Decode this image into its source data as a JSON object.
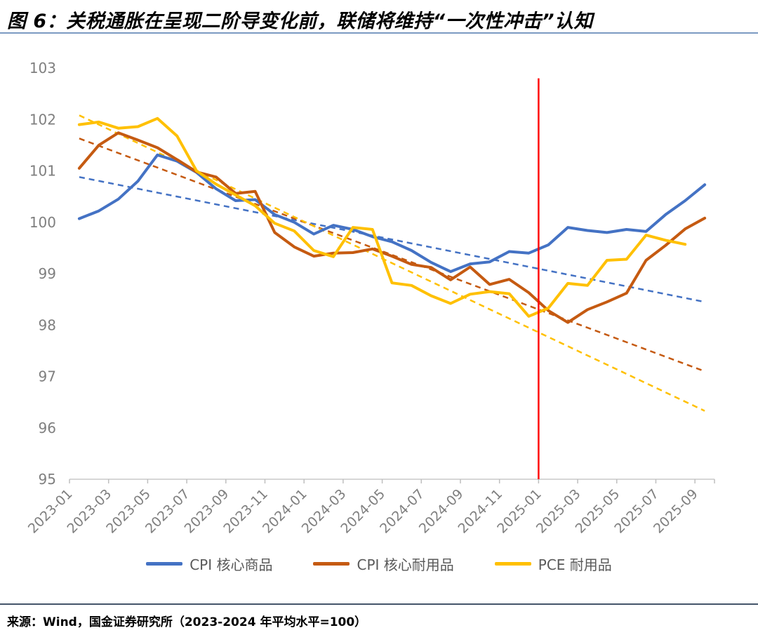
{
  "title": "图 6：关税通胀在呈现二阶导变化前，联储将维持“一次性冲击”认知",
  "source_note": "来源：Wind，国金证券研究所（2023-2024 年平均水平=100）",
  "chart_data": {
    "type": "line",
    "title": "",
    "xlabel": "",
    "ylabel": "",
    "ylim": [
      95,
      103
    ],
    "y_ticks": [
      95,
      96,
      97,
      98,
      99,
      100,
      101,
      102,
      103
    ],
    "grid": false,
    "legend_position": "bottom",
    "categories": [
      "2023-01",
      "2023-02",
      "2023-03",
      "2023-04",
      "2023-05",
      "2023-06",
      "2023-07",
      "2023-08",
      "2023-09",
      "2023-10",
      "2023-11",
      "2023-12",
      "2024-01",
      "2024-02",
      "2024-03",
      "2024-04",
      "2024-05",
      "2024-06",
      "2024-07",
      "2024-08",
      "2024-09",
      "2024-10",
      "2024-11",
      "2024-12",
      "2025-01",
      "2025-02",
      "2025-03",
      "2025-04",
      "2025-05",
      "2025-06",
      "2025-07",
      "2025-08",
      "2025-09"
    ],
    "x_tick_labels": [
      "2023-01",
      "2023-03",
      "2023-05",
      "2023-07",
      "2023-09",
      "2023-11",
      "2024-01",
      "2024-03",
      "2024-05",
      "2024-07",
      "2024-09",
      "2024-11",
      "2025-01",
      "2025-03",
      "2025-05",
      "2025-07",
      "2025-09"
    ],
    "series": [
      {
        "name": "CPI 核心商品",
        "color": "#4472C4",
        "values": [
          100.07,
          100.22,
          100.45,
          100.8,
          101.31,
          101.19,
          100.97,
          100.65,
          100.42,
          100.44,
          100.15,
          100.0,
          99.77,
          99.94,
          99.86,
          99.72,
          99.62,
          99.45,
          99.22,
          99.04,
          99.19,
          99.23,
          99.43,
          99.4,
          99.56,
          99.9,
          99.84,
          99.8,
          99.86,
          99.82,
          100.15,
          100.42,
          100.73
        ]
      },
      {
        "name": "CPI 核心耐用品",
        "color": "#C55A11",
        "values": [
          101.05,
          101.5,
          101.74,
          101.6,
          101.45,
          101.22,
          100.98,
          100.88,
          100.56,
          100.6,
          99.8,
          99.52,
          99.34,
          99.4,
          99.41,
          99.48,
          99.34,
          99.18,
          99.12,
          98.88,
          99.13,
          98.79,
          98.89,
          98.63,
          98.28,
          98.05,
          98.3,
          98.45,
          98.62,
          99.26,
          99.55,
          99.87,
          100.08
        ]
      },
      {
        "name": "PCE 耐用品",
        "color": "#FFC000",
        "values": [
          101.9,
          101.95,
          101.83,
          101.86,
          102.02,
          101.68,
          101.0,
          100.74,
          100.53,
          100.32,
          99.98,
          99.83,
          99.45,
          99.33,
          99.9,
          99.86,
          98.82,
          98.77,
          98.57,
          98.42,
          98.6,
          98.65,
          98.61,
          98.17,
          98.33,
          98.81,
          98.77,
          99.26,
          99.28,
          99.75,
          99.65,
          99.57,
          null
        ]
      }
    ],
    "trendlines": [
      {
        "series": "CPI 核心商品",
        "color": "#4472C4",
        "style": "dashed",
        "start_value": 100.88,
        "end_value": 98.45
      },
      {
        "series": "CPI 核心耐用品",
        "color": "#C55A11",
        "style": "dashed",
        "start_value": 101.63,
        "end_value": 97.1
      },
      {
        "series": "PCE 耐用品",
        "color": "#FFC000",
        "style": "dashed",
        "start_value": 102.08,
        "end_value": 96.33
      }
    ],
    "red_vline": {
      "x_label": "2025-01",
      "color": "#FF0000",
      "top_value": 102.8
    }
  },
  "style_colors": {
    "axis_line": "#C9C9C9",
    "tick_mark": "#BFBFBF",
    "axis_text": "#7F7F7F",
    "legend_text": "#595959",
    "title_rule": "#7C9AC2",
    "source_rule": "#44546A"
  }
}
